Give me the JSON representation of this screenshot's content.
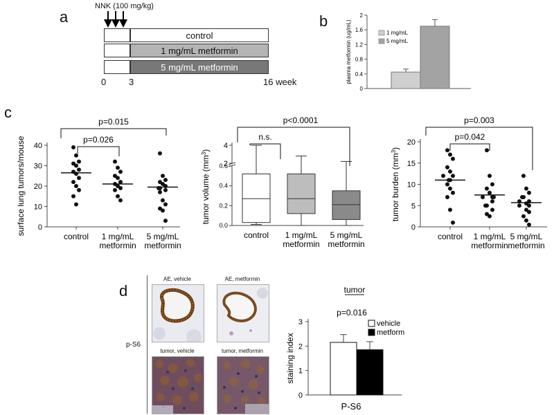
{
  "panel_a": {
    "letter": "a",
    "treatment": "NNK (100 mg/kg)",
    "arms": [
      "control",
      "1 mg/mL metformin",
      "5 mg/mL metformin"
    ],
    "arm_colors": [
      "#ffffff",
      "#b4b4b4",
      "#787878"
    ],
    "timeline_ticks": [
      "0",
      "3",
      "16 week"
    ]
  },
  "chart_data": [
    {
      "id": "b",
      "type": "bar",
      "panel": "b",
      "ylabel": "plasma metformin (ug/mL)",
      "yticks": [
        0,
        0.4,
        0.8,
        1.2,
        1.6,
        2
      ],
      "ylim": [
        0,
        2
      ],
      "series": [
        {
          "name": "1 mg/mL",
          "value": 0.45,
          "error": 0.08,
          "color": "#cfcfcf"
        },
        {
          "name": "5 mg/mL",
          "value": 1.7,
          "error": 0.18,
          "color": "#a3a3a3"
        }
      ]
    },
    {
      "id": "c1",
      "type": "scatter",
      "panel": "c",
      "ylabel": "surface lung tumors/mouse",
      "ylim": [
        0,
        40
      ],
      "yticks": [
        0,
        10,
        20,
        30,
        40
      ],
      "categories": [
        "control",
        "1 mg/mL\nmetformin",
        "5 mg/mL\nmetformin"
      ],
      "points": [
        [
          39,
          35,
          32,
          31,
          30,
          28,
          27,
          26,
          24,
          22,
          20,
          18,
          15,
          11
        ],
        [
          32,
          29,
          27,
          25,
          24,
          22,
          21,
          20,
          19,
          18,
          15,
          13
        ],
        [
          36,
          25,
          23,
          22,
          21,
          20,
          19,
          19,
          18,
          17,
          13,
          11,
          9,
          8,
          3
        ]
      ],
      "means": [
        26.5,
        21,
        19.5
      ],
      "comparisons": [
        {
          "label": "p=0.015",
          "from": 0,
          "to": 2
        },
        {
          "label": "p=0.026",
          "from": 0,
          "to": 1
        }
      ]
    },
    {
      "id": "c2",
      "type": "box",
      "panel": "c",
      "ylabel": "tumor volume (mm3)",
      "ylabel_main": "tumor volume (mm",
      "ylabel_sup": "3",
      "ylabel_tail": ")",
      "yticks_lower": [
        0,
        0.2,
        0.4,
        0.6
      ],
      "yticks_upper": [
        2,
        4
      ],
      "categories": [
        "control",
        "1 mg/mL\nmetformin",
        "5 mg/mL\nmetformin"
      ],
      "colors": [
        "#ffffff",
        "#bdbdbd",
        "#8a8a8a"
      ],
      "boxes": [
        {
          "whisker_low": 0.01,
          "q1": 0.03,
          "median": 0.27,
          "q3": 0.52,
          "whisker_high": 4.0
        },
        {
          "whisker_low": 0.0,
          "q1": 0.12,
          "median": 0.27,
          "q3": 0.52,
          "whisker_high": 2.8
        },
        {
          "whisker_low": 0.0,
          "q1": 0.06,
          "median": 0.21,
          "q3": 0.35,
          "whisker_high": 2.2
        }
      ],
      "comparisons": [
        {
          "label": "p<0.0001",
          "from": 0,
          "to": 2
        },
        {
          "label": "n.s.",
          "from": 0,
          "to": 1
        }
      ]
    },
    {
      "id": "c3",
      "type": "scatter",
      "panel": "c",
      "ylabel": "tumor burden (mm3)",
      "ylabel_main": "tumor burden (mm",
      "ylabel_sup": "3",
      "ylabel_tail": ")",
      "ylim": [
        0,
        20
      ],
      "yticks": [
        0,
        5,
        10,
        15,
        20
      ],
      "categories": [
        "control",
        "1 mg/mL\nmetformin",
        "5 mg/mL\nmetformin"
      ],
      "points": [
        [
          18,
          17,
          16,
          14,
          13,
          12,
          12,
          11,
          11,
          10,
          9,
          8,
          7,
          4,
          1
        ],
        [
          18,
          12,
          10,
          9,
          8,
          7,
          7,
          7,
          6,
          5,
          5,
          4,
          3,
          2.5
        ],
        [
          12,
          9,
          8,
          7,
          7,
          6,
          6,
          5.5,
          5,
          5,
          4,
          3.5,
          2.5,
          1.5,
          0.5
        ]
      ],
      "means": [
        11,
        7.5,
        5.7
      ],
      "comparisons": [
        {
          "label": "p=0.003",
          "from": 0,
          "to": 2
        },
        {
          "label": "p=0.042",
          "from": 0,
          "to": 1
        }
      ]
    },
    {
      "id": "d",
      "type": "bar",
      "panel": "d",
      "title": "tumor",
      "ylabel": "staining index",
      "xlabel": "P-S6",
      "ylim": [
        0,
        3
      ],
      "yticks": [
        0,
        1,
        2,
        3
      ],
      "pvalue": "p=0.016",
      "series": [
        {
          "name": "vehicle",
          "value": 2.15,
          "error": 0.32,
          "color": "#ffffff"
        },
        {
          "name": "metform",
          "value": 1.85,
          "error": 0.33,
          "color": "#000000"
        }
      ]
    }
  ],
  "panel_c": {
    "letter": "c"
  },
  "panel_b": {
    "letter": "b"
  },
  "panel_d": {
    "letter": "d",
    "row_label": "p-S6",
    "micrographs": [
      "AE, vehicle",
      "AE, metformin",
      "tumor, vehicle",
      "tumor, metformin"
    ]
  }
}
